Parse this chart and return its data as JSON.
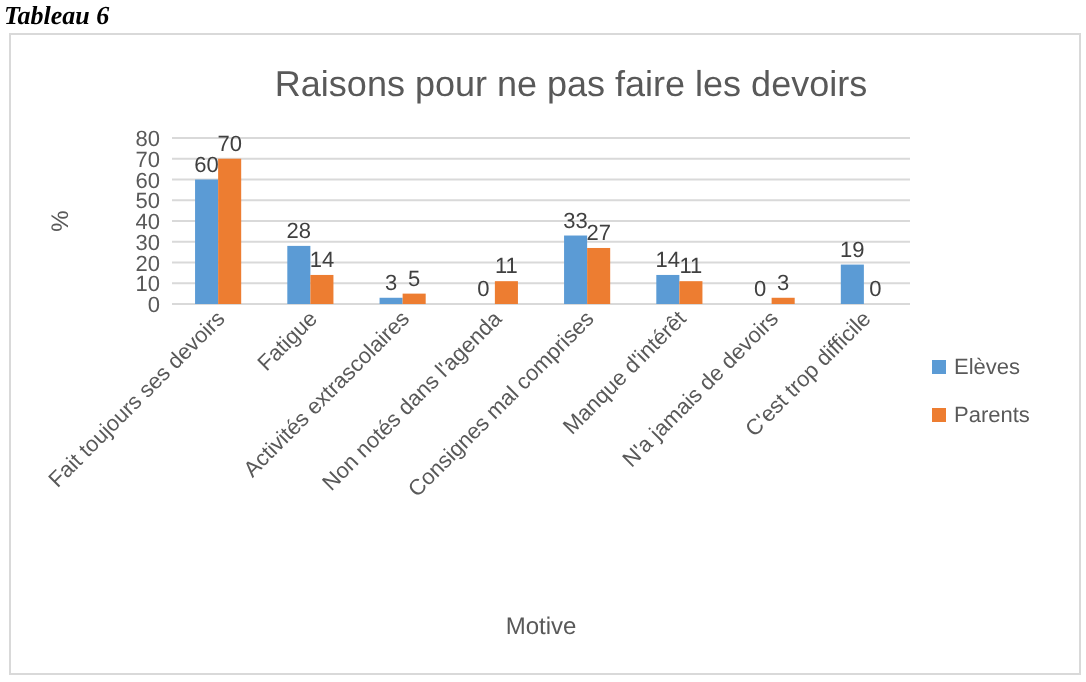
{
  "chart_data": {
    "type": "bar",
    "title": "Raisons pour ne pas faire les devoirs",
    "xlabel": "Motive",
    "ylabel": "%",
    "annotations": [
      "Tableau 6"
    ],
    "categories": [
      "Fait toujours ses devoirs",
      "Fatigue",
      "Activités extrascolaires",
      "Non notés dans l'agenda",
      "Consignes mal comprises",
      "Manque d'intérêt",
      "N'a jamais de devoirs",
      "C'est trop difficile"
    ],
    "series": [
      {
        "name": "Elèves",
        "color": "#5b9bd5",
        "values": [
          60,
          28,
          3,
          0,
          33,
          14,
          0,
          19
        ]
      },
      {
        "name": "Parents",
        "color": "#ed7d31",
        "values": [
          70,
          14,
          5,
          11,
          27,
          11,
          3,
          0
        ]
      }
    ],
    "ylim": [
      0,
      80
    ],
    "yticks": [
      0,
      10,
      20,
      30,
      40,
      50,
      60,
      70,
      80
    ],
    "grid": "y",
    "legend": "right",
    "data_labels": true
  }
}
